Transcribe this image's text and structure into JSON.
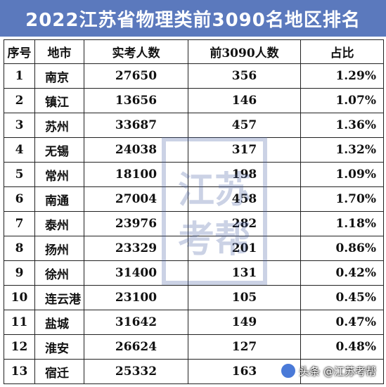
{
  "title": "2022江苏省物理类前3090名地区排名",
  "headers": [
    "序号",
    "地市",
    "实考人数",
    "前3090人数",
    "占比"
  ],
  "rows": [
    [
      "1",
      "南京",
      "27650",
      "356",
      "1.29%"
    ],
    [
      "2",
      "镇江",
      "13656",
      "146",
      "1.07%"
    ],
    [
      "3",
      "苏州",
      "33687",
      "457",
      "1.36%"
    ],
    [
      "4",
      "无锡",
      "24038",
      "317",
      "1.32%"
    ],
    [
      "5",
      "常州",
      "18100",
      "198",
      "1.09%"
    ],
    [
      "6",
      "南通",
      "27004",
      "458",
      "1.70%"
    ],
    [
      "7",
      "泰州",
      "23976",
      "282",
      "1.18%"
    ],
    [
      "8",
      "扬州",
      "23329",
      "201",
      "0.86%"
    ],
    [
      "9",
      "徐州",
      "31400",
      "131",
      "0.42%"
    ],
    [
      "10",
      "连云港",
      "23100",
      "105",
      "0.45%"
    ],
    [
      "11",
      "盐城",
      "31642",
      "149",
      "0.47%"
    ],
    [
      "12",
      "淮安",
      "26624",
      "127",
      "0.48%"
    ],
    [
      "13",
      "宿迁",
      "25332",
      "163",
      ""
    ]
  ],
  "watermark": "江苏考帮",
  "credit": "头条 @江苏考帮"
}
